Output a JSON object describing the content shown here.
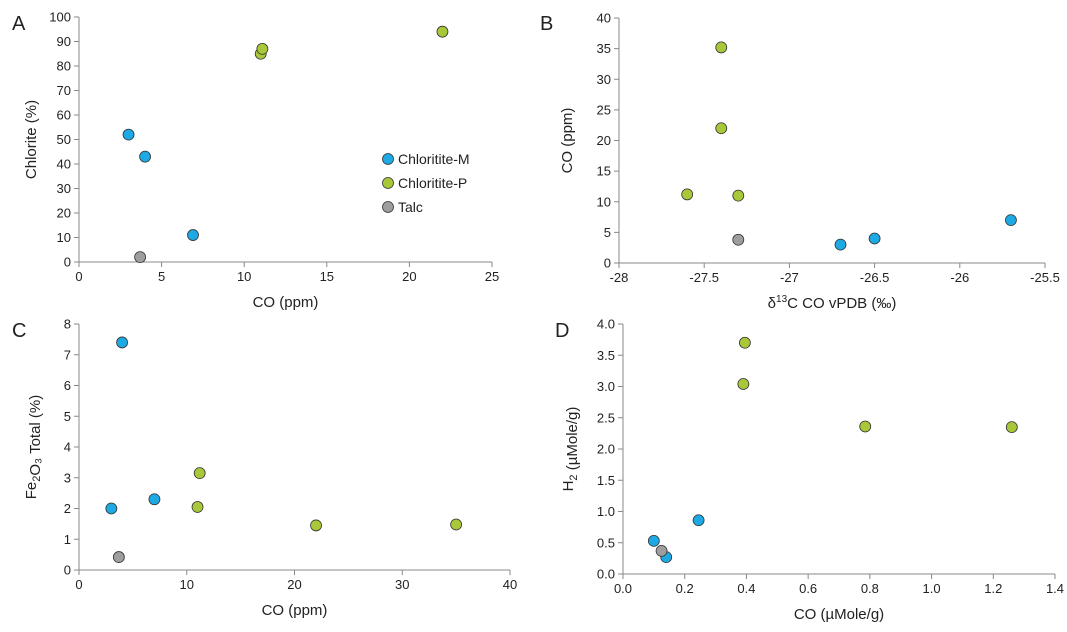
{
  "colors": {
    "Chloritite-M": "#1da9e3",
    "Chloritite-P": "#a8c83a",
    "Talc": "#9e9e9e",
    "axis": "#888888",
    "marker_stroke": "#333333"
  },
  "legend": {
    "items": [
      {
        "label": "Chloritite-M",
        "color": "#1da9e3"
      },
      {
        "label": "Chloritite-P",
        "color": "#a8c83a"
      },
      {
        "label": "Talc",
        "color": "#9e9e9e"
      }
    ]
  },
  "chart_data": [
    {
      "type": "scatter",
      "panel": "A",
      "xlabel": "CO (ppm)",
      "ylabel": "Chlorite (%)",
      "xlim": [
        0,
        25
      ],
      "ylim": [
        0,
        100
      ],
      "xticks": [
        "0",
        "5",
        "10",
        "15",
        "20",
        "25"
      ],
      "yticks": [
        "0",
        "10",
        "20",
        "30",
        "40",
        "50",
        "60",
        "70",
        "80",
        "90",
        "100"
      ],
      "series": [
        {
          "name": "Chloritite-M",
          "points": [
            [
              3,
              52
            ],
            [
              4,
              43
            ],
            [
              6.9,
              11
            ]
          ]
        },
        {
          "name": "Chloritite-P",
          "points": [
            [
              11,
              85
            ],
            [
              11.1,
              87
            ],
            [
              22,
              94
            ]
          ]
        },
        {
          "name": "Talc",
          "points": [
            [
              3.7,
              2
            ]
          ]
        }
      ]
    },
    {
      "type": "scatter",
      "panel": "B",
      "xlabel": "δ¹³C CO vPDB (‰)",
      "ylabel": "CO (ppm)",
      "xlim": [
        -28,
        -25.5
      ],
      "ylim": [
        0,
        40
      ],
      "xticks": [
        "-28",
        "-27.5",
        "-27",
        "-26.5",
        "-26",
        "-25.5"
      ],
      "yticks": [
        "0",
        "5",
        "10",
        "15",
        "20",
        "25",
        "30",
        "35",
        "40"
      ],
      "series": [
        {
          "name": "Chloritite-M",
          "points": [
            [
              -26.7,
              3
            ],
            [
              -26.5,
              4
            ],
            [
              -25.7,
              7
            ]
          ]
        },
        {
          "name": "Chloritite-P",
          "points": [
            [
              -27.6,
              11.2
            ],
            [
              -27.4,
              35.2
            ],
            [
              -27.4,
              22
            ],
            [
              -27.3,
              11
            ]
          ]
        },
        {
          "name": "Talc",
          "points": [
            [
              -27.3,
              3.8
            ]
          ]
        }
      ]
    },
    {
      "type": "scatter",
      "panel": "C",
      "xlabel": "CO (ppm)",
      "ylabel": "Fe₂O₃ Total (%)",
      "xlim": [
        0,
        40
      ],
      "ylim": [
        0,
        8
      ],
      "xticks": [
        "0",
        "10",
        "20",
        "30",
        "40"
      ],
      "yticks": [
        "0",
        "1",
        "2",
        "3",
        "4",
        "5",
        "6",
        "7",
        "8"
      ],
      "series": [
        {
          "name": "Chloritite-M",
          "points": [
            [
              3,
              2
            ],
            [
              4,
              7.4
            ],
            [
              7,
              2.3
            ]
          ]
        },
        {
          "name": "Chloritite-P",
          "points": [
            [
              11,
              2.05
            ],
            [
              11.2,
              3.15
            ],
            [
              22,
              1.45
            ],
            [
              35,
              1.48
            ]
          ]
        },
        {
          "name": "Talc",
          "points": [
            [
              3.7,
              0.42
            ]
          ]
        }
      ]
    },
    {
      "type": "scatter",
      "panel": "D",
      "xlabel": "CO (µMole/g)",
      "ylabel": "H₂ (µMole/g)",
      "xlim": [
        0,
        1.4
      ],
      "ylim": [
        0,
        4
      ],
      "xticks": [
        "0.0",
        "0.2",
        "0.4",
        "0.6",
        "0.8",
        "1.0",
        "1.2",
        "1.4"
      ],
      "yticks": [
        "0.0",
        "0.5",
        "1.0",
        "1.5",
        "2.0",
        "2.5",
        "3.0",
        "3.5",
        "4.0"
      ],
      "series": [
        {
          "name": "Chloritite-M",
          "points": [
            [
              0.1,
              0.53
            ],
            [
              0.14,
              0.27
            ],
            [
              0.245,
              0.86
            ]
          ]
        },
        {
          "name": "Chloritite-P",
          "points": [
            [
              0.395,
              3.7
            ],
            [
              0.39,
              3.04
            ],
            [
              0.785,
              2.36
            ],
            [
              1.26,
              2.35
            ]
          ]
        },
        {
          "name": "Talc",
          "points": [
            [
              0.125,
              0.37
            ]
          ]
        }
      ]
    }
  ]
}
